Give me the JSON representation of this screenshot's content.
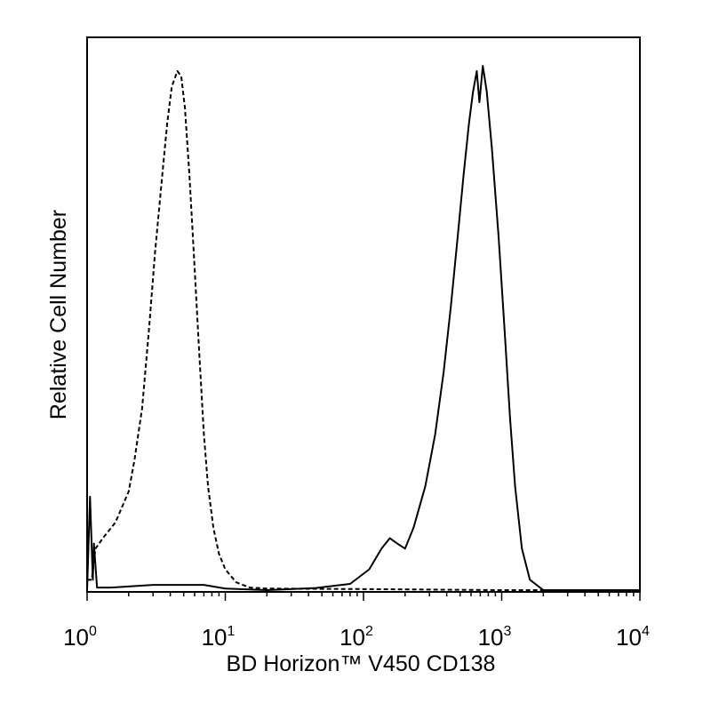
{
  "chart_data": {
    "type": "line",
    "xscale": "log",
    "xlim": [
      1,
      10000
    ],
    "xlabel": "BD Horizon™ V450 CD138",
    "ylabel": "Relative Cell Number",
    "grid": false,
    "x_ticks": [
      {
        "base": "10",
        "exp": "0"
      },
      {
        "base": "10",
        "exp": "1"
      },
      {
        "base": "10",
        "exp": "2"
      },
      {
        "base": "10",
        "exp": "3"
      },
      {
        "base": "10",
        "exp": "4"
      }
    ],
    "series": [
      {
        "style": "dashed",
        "color": "#000000",
        "points": [
          [
            1.0,
            0.02
          ],
          [
            1.08,
            0.02
          ],
          [
            1.15,
            0.08
          ],
          [
            1.3,
            0.1
          ],
          [
            1.6,
            0.13
          ],
          [
            2.0,
            0.19
          ],
          [
            2.2,
            0.25
          ],
          [
            2.5,
            0.35
          ],
          [
            2.8,
            0.5
          ],
          [
            3.1,
            0.65
          ],
          [
            3.5,
            0.8
          ],
          [
            3.8,
            0.9
          ],
          [
            4.1,
            0.97
          ],
          [
            4.5,
            1.0
          ],
          [
            4.8,
            0.99
          ],
          [
            5.1,
            0.93
          ],
          [
            5.5,
            0.8
          ],
          [
            6.0,
            0.62
          ],
          [
            6.5,
            0.45
          ],
          [
            7.0,
            0.3
          ],
          [
            7.5,
            0.2
          ],
          [
            8.2,
            0.12
          ],
          [
            9.0,
            0.07
          ],
          [
            10.0,
            0.04
          ],
          [
            12.0,
            0.015
          ],
          [
            15.0,
            0.005
          ],
          [
            20.0,
            0.003
          ],
          [
            100.0,
            0.002
          ],
          [
            1000.0,
            0.0
          ],
          [
            10000.0,
            0.0
          ]
        ]
      },
      {
        "style": "solid",
        "color": "#000000",
        "points": [
          [
            1.0,
            0.0
          ],
          [
            1.05,
            0.18
          ],
          [
            1.1,
            0.02
          ],
          [
            1.12,
            0.09
          ],
          [
            1.18,
            0.005
          ],
          [
            1.5,
            0.005
          ],
          [
            3.0,
            0.01
          ],
          [
            7.0,
            0.01
          ],
          [
            10.0,
            0.003
          ],
          [
            20.0,
            0.0
          ],
          [
            45.0,
            0.004
          ],
          [
            80.0,
            0.012
          ],
          [
            110.0,
            0.04
          ],
          [
            135.0,
            0.08
          ],
          [
            155.0,
            0.1
          ],
          [
            175.0,
            0.09
          ],
          [
            200.0,
            0.08
          ],
          [
            230.0,
            0.12
          ],
          [
            280.0,
            0.2
          ],
          [
            330.0,
            0.3
          ],
          [
            380.0,
            0.42
          ],
          [
            430.0,
            0.55
          ],
          [
            480.0,
            0.68
          ],
          [
            530.0,
            0.8
          ],
          [
            580.0,
            0.9
          ],
          [
            620.0,
            0.96
          ],
          [
            660.0,
            1.0
          ],
          [
            690.0,
            0.94
          ],
          [
            730.0,
            1.01
          ],
          [
            780.0,
            0.96
          ],
          [
            850.0,
            0.85
          ],
          [
            950.0,
            0.68
          ],
          [
            1050.0,
            0.5
          ],
          [
            1150.0,
            0.33
          ],
          [
            1250.0,
            0.2
          ],
          [
            1400.0,
            0.08
          ],
          [
            1600.0,
            0.02
          ],
          [
            2000.0,
            0.0
          ],
          [
            10000.0,
            0.0
          ]
        ]
      }
    ]
  }
}
